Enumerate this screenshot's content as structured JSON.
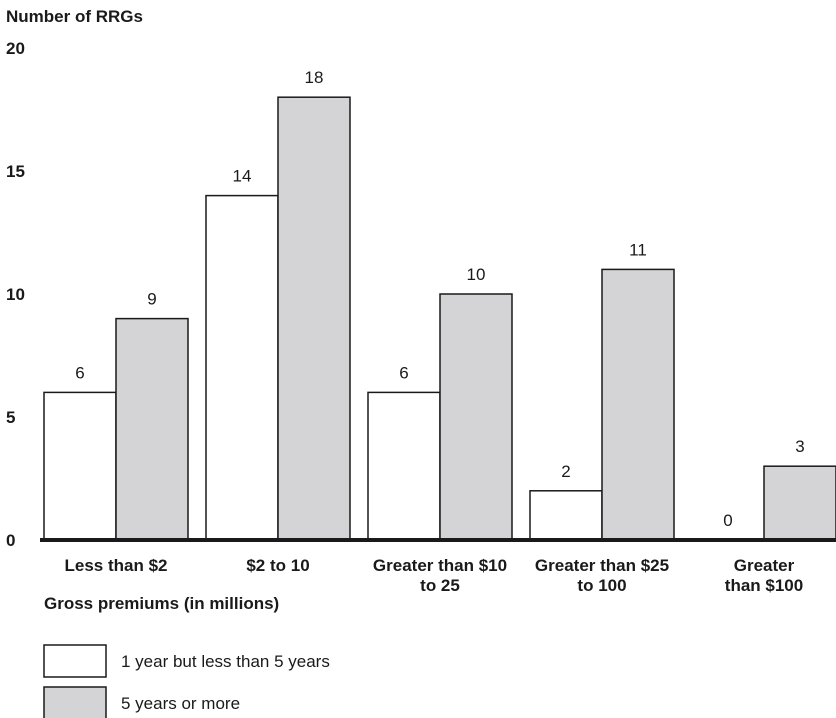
{
  "chart_data": {
    "type": "bar",
    "ylabel": "Number of RRGs",
    "xlabel": "Gross premiums (in millions)",
    "ylim": [
      0,
      20
    ],
    "yticks": [
      0,
      5,
      10,
      15,
      20
    ],
    "grid": false,
    "legend_position": "bottom-left",
    "categories": [
      [
        "Less than $2"
      ],
      [
        "$2 to 10"
      ],
      [
        "Greater than $10",
        "to 25"
      ],
      [
        "Greater than $25",
        "to 100"
      ],
      [
        "Greater",
        "than $100"
      ]
    ],
    "series": [
      {
        "name": "1 year but less than 5 years",
        "color": "#ffffff",
        "values": [
          6,
          14,
          6,
          2,
          0
        ]
      },
      {
        "name": "5 years or more",
        "color": "#d4d4d6",
        "values": [
          9,
          18,
          10,
          11,
          3
        ]
      }
    ]
  }
}
